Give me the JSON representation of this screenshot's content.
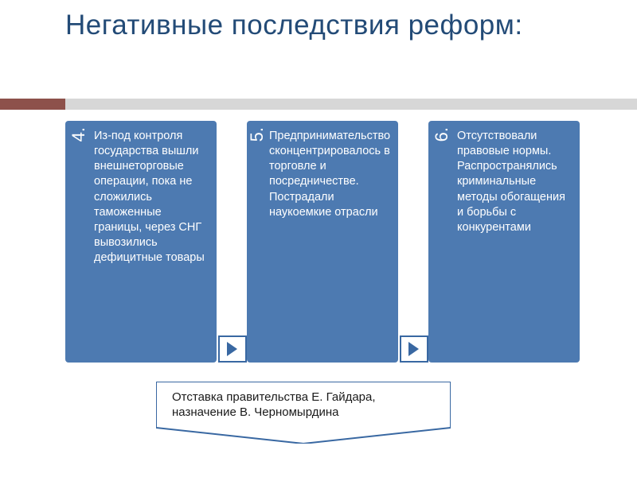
{
  "title": "Негативные последствия реформ:",
  "title_color": "#234b77",
  "title_fontsize": 35,
  "accent": {
    "gray": "#d7d7d7",
    "brown": "#8d514b"
  },
  "card_bg": "#4d7ab1",
  "card_text_color": "#ffffff",
  "arrow_border": "#3968a2",
  "arrow_fill": "#3968a2",
  "cards": [
    {
      "num": "4.",
      "text": "Из-под контроля государства вышли внешнеторговые операции, пока не сложились таможенные границы, через СНГ вывозились дефицитные товары",
      "show_connector": true
    },
    {
      "num": "5.",
      "text": "Предпринимательство сконцентрировалось в торговле и посредничестве. Пострадали наукоемкие отрасли",
      "show_connector": true
    },
    {
      "num": "6.",
      "text": "Отсутствовали правовые нормы. Распространялись криминальные методы обогащения и борьбы с конкурентами",
      "show_connector": false
    }
  ],
  "outcome_text": "Отставка правительства Е. Гайдара, назначение В. Черномырдина",
  "outcome_border": "#3968a2"
}
